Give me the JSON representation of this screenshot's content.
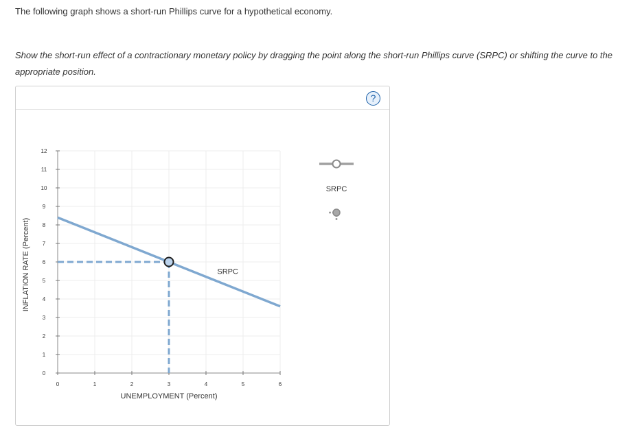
{
  "intro_text": "The following graph shows a short-run Phillips curve for a hypothetical economy.",
  "instruction_text": "Show the short-run effect of a contractionary monetary policy by dragging the point along the short-run Phillips curve (SRPC) or shifting the curve to the appropriate position.",
  "help_label": "?",
  "palette": {
    "curve": "#7fa8d0",
    "point_fill": "#bcd3ec",
    "point_stroke": "#1f1f1f",
    "grid": "#ececec",
    "legend_gray": "#a0a0a0"
  },
  "legend": {
    "tool_label": "SRPC"
  },
  "chart_data": {
    "type": "line",
    "xlabel": "UNEMPLOYMENT (Percent)",
    "ylabel": "INFLATION RATE (Percent)",
    "xlim": [
      0,
      6
    ],
    "ylim": [
      0,
      12
    ],
    "x_ticks": [
      0,
      1,
      2,
      3,
      4,
      5,
      6
    ],
    "y_ticks": [
      0,
      1,
      2,
      3,
      4,
      5,
      6,
      7,
      8,
      9,
      10,
      11,
      12
    ],
    "grid": true,
    "series": [
      {
        "name": "SRPC",
        "x": [
          0,
          6
        ],
        "y": [
          8.4,
          3.6
        ]
      }
    ],
    "point": {
      "x": 3,
      "y": 6
    },
    "dashed_guides": true
  }
}
